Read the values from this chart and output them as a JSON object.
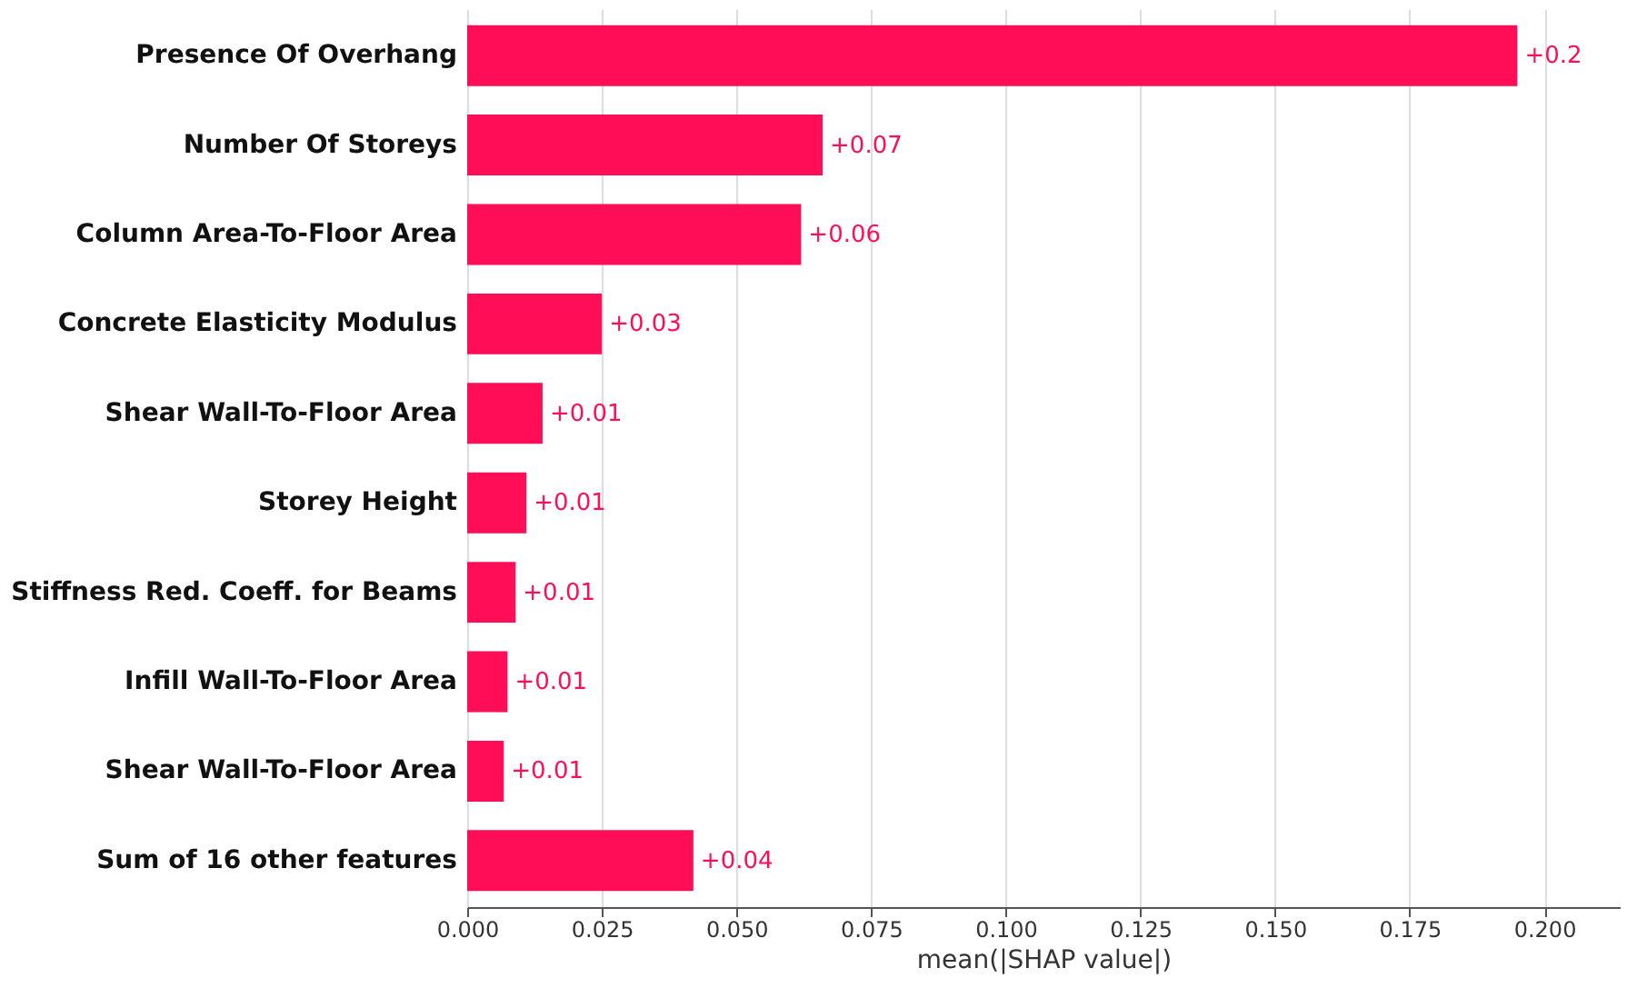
{
  "chart_data": {
    "type": "bar",
    "orientation": "horizontal",
    "xlabel": "mean(|SHAP value|)",
    "categories": [
      "Presence Of Overhang",
      "Number Of Storeys",
      "Column Area-To-Floor Area",
      "Concrete Elasticity Modulus",
      "Shear Wall-To-Floor Area",
      "Storey Height",
      "Stiffness Red. Coeff. for Beams",
      "Infill Wall-To-Floor Area",
      "Shear Wall-To-Floor Area",
      "Sum of 16 other features"
    ],
    "values": [
      0.195,
      0.066,
      0.062,
      0.025,
      0.014,
      0.011,
      0.009,
      0.0075,
      0.0068,
      0.042
    ],
    "value_labels": [
      "+0.2",
      "+0.07",
      "+0.06",
      "+0.03",
      "+0.01",
      "+0.01",
      "+0.01",
      "+0.01",
      "+0.01",
      "+0.04"
    ],
    "color": "#ff0d57",
    "xlim": [
      0,
      0.214
    ],
    "xticks": [
      {
        "value": 0,
        "label": "0.000"
      },
      {
        "value": 0.025,
        "label": "0.025"
      },
      {
        "value": 0.05,
        "label": "0.050"
      },
      {
        "value": 0.075,
        "label": "0.075"
      },
      {
        "value": 0.1,
        "label": "0.100"
      },
      {
        "value": 0.125,
        "label": "0.125"
      },
      {
        "value": 0.15,
        "label": "0.150"
      },
      {
        "value": 0.175,
        "label": "0.175"
      },
      {
        "value": 0.2,
        "label": "0.200"
      }
    ],
    "grid": "x"
  }
}
